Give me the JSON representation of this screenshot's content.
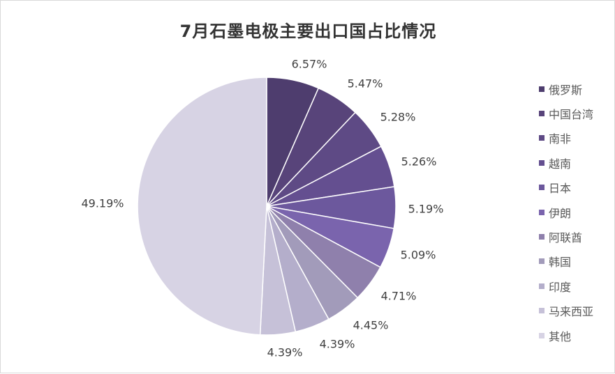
{
  "chart_data": {
    "type": "pie",
    "title": "7月石墨电极主要出口国占比情况",
    "legend_position": "right",
    "categories": [
      "俄罗斯",
      "中国台湾",
      "南非",
      "越南",
      "日本",
      "伊朗",
      "阿联酋",
      "韩国",
      "印度",
      "马来西亚",
      "其他"
    ],
    "values": [
      6.57,
      5.47,
      5.28,
      5.26,
      5.19,
      5.09,
      4.71,
      4.45,
      4.39,
      4.39,
      49.19
    ],
    "labels": [
      "6.57%",
      "5.47%",
      "5.28%",
      "5.26%",
      "5.19%",
      "5.09%",
      "4.71%",
      "4.45%",
      "4.39%",
      "4.39%",
      "49.19%"
    ],
    "colors": [
      "#4e3d6e",
      "#58447a",
      "#5e4a85",
      "#644f90",
      "#6c589d",
      "#7a64ad",
      "#8f80ac",
      "#a29bba",
      "#b4aecb",
      "#c6c1d8",
      "#d7d3e4"
    ]
  }
}
